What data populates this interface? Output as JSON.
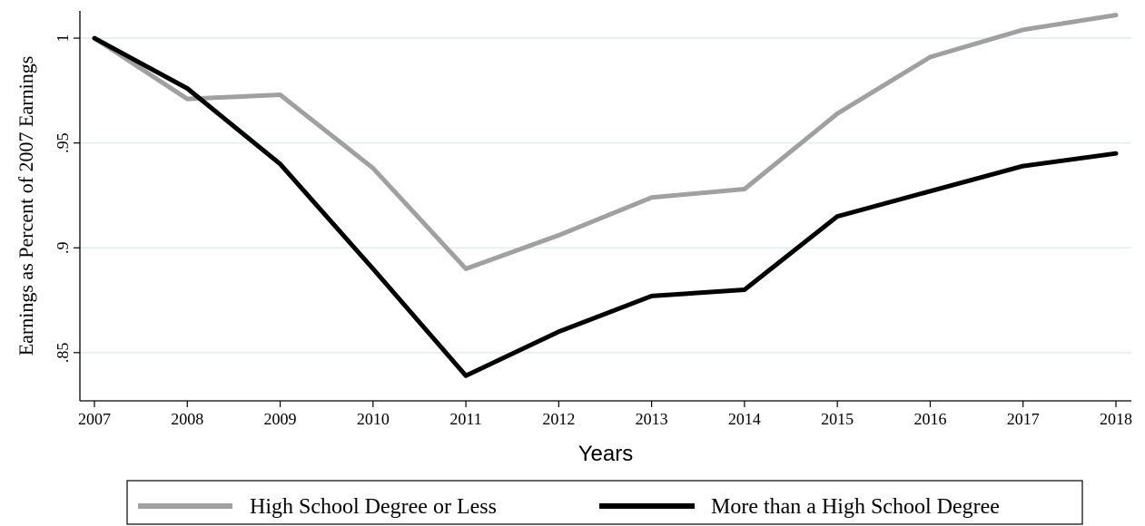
{
  "chart_data": {
    "type": "line",
    "xlabel": "Years",
    "ylabel": "Earnings as Percent of 2007 Earnings",
    "x": [
      2007,
      2008,
      2009,
      2010,
      2011,
      2012,
      2013,
      2014,
      2015,
      2016,
      2017,
      2018
    ],
    "xticks": [
      "2007",
      "2008",
      "2009",
      "2010",
      "2011",
      "2012",
      "2013",
      "2014",
      "2015",
      "2016",
      "2017",
      "2018"
    ],
    "yticks": [
      {
        "value": 0.85,
        "label": ".85"
      },
      {
        "value": 0.9,
        "label": ".9"
      },
      {
        "value": 0.95,
        "label": ".95"
      },
      {
        "value": 1.0,
        "label": "1"
      }
    ],
    "ylim": [
      0.827,
      1.013
    ],
    "grid": true,
    "legend_position": "bottom",
    "series": [
      {
        "name": "High School Degree or Less",
        "color": "#a0a0a0",
        "values": [
          1.0,
          0.971,
          0.973,
          0.938,
          0.89,
          0.906,
          0.924,
          0.928,
          0.964,
          0.991,
          1.004,
          1.011
        ]
      },
      {
        "name": "More than a High School Degree",
        "color": "#000000",
        "values": [
          1.0,
          0.976,
          0.94,
          0.89,
          0.839,
          0.86,
          0.877,
          0.88,
          0.915,
          0.927,
          0.939,
          0.945
        ]
      }
    ]
  }
}
